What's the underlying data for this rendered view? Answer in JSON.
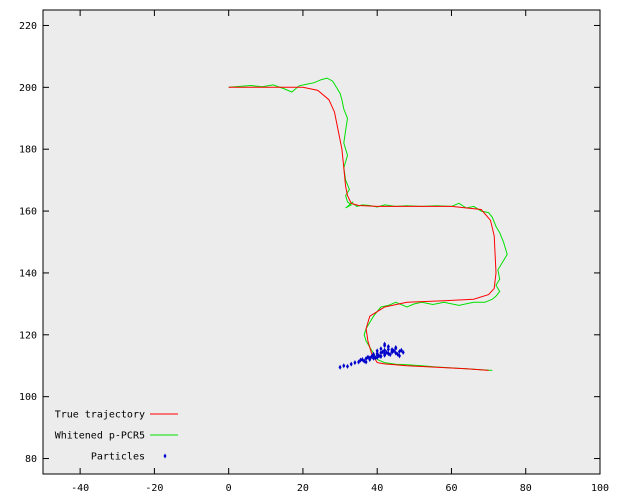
{
  "chart_data": {
    "type": "line",
    "title": "",
    "xlabel": "",
    "ylabel": "",
    "xlim": [
      -50,
      100
    ],
    "ylim": [
      75,
      225
    ],
    "xticks": [
      -40,
      -20,
      0,
      20,
      40,
      60,
      80,
      100
    ],
    "yticks": [
      80,
      100,
      120,
      140,
      160,
      180,
      200,
      220
    ],
    "grid": false,
    "legend_position": "bottom-left",
    "background": "#ececec",
    "series": [
      {
        "name": "True trajectory",
        "kind": "line",
        "color": "#ff0000",
        "x": [
          0,
          10,
          20,
          24,
          27,
          28.5,
          29.5,
          30.5,
          31,
          31.5,
          32,
          33,
          35,
          40,
          50,
          60,
          68,
          70.5,
          71.5,
          72,
          71.5,
          70,
          66,
          58,
          48,
          42,
          38,
          37,
          37.5,
          38.5,
          39.5,
          40,
          42,
          48,
          56,
          64,
          70
        ],
        "y": [
          200,
          200,
          200,
          199,
          196,
          192,
          186,
          180,
          174,
          168,
          165,
          162.5,
          161.8,
          161.5,
          161.5,
          161.5,
          160.5,
          157,
          152,
          140,
          135,
          133,
          131.5,
          131,
          130.5,
          129,
          126,
          122,
          118,
          114,
          112,
          111,
          110.6,
          110,
          109.5,
          109,
          108.5
        ]
      },
      {
        "name": "Whitened p-PCR5",
        "kind": "line",
        "color": "#00e000",
        "x": [
          0,
          3,
          6,
          9,
          12,
          15,
          17,
          19,
          21,
          23,
          25,
          26.5,
          28,
          29,
          30,
          30.5,
          31,
          32,
          31.5,
          31,
          32,
          31,
          31.5,
          32.5,
          31.5,
          32,
          33,
          31.5,
          32.5,
          33.5,
          33,
          34,
          34.5,
          36,
          38,
          40,
          42,
          45,
          48,
          52,
          56,
          60,
          62,
          64,
          66,
          68,
          70,
          71,
          72,
          73,
          74,
          75,
          74,
          72.5,
          73,
          72,
          73,
          72,
          71,
          69,
          66,
          62,
          58,
          55,
          52,
          50,
          48,
          45,
          43,
          41,
          40,
          39,
          38,
          37,
          36.5,
          37,
          38,
          39,
          40,
          42,
          45,
          48,
          52,
          56,
          60,
          64,
          68,
          71
        ],
        "y": [
          200,
          200.3,
          200.6,
          200.2,
          200.8,
          199.5,
          198.5,
          200.5,
          201,
          201.5,
          202.5,
          203,
          202,
          200,
          198,
          196,
          193,
          190,
          186,
          182,
          178,
          174,
          170,
          167,
          165,
          163,
          162,
          161,
          162,
          163,
          162.5,
          162,
          161.5,
          162,
          161.8,
          161.3,
          162,
          161.5,
          161.7,
          161.5,
          161.7,
          161.5,
          162.5,
          161,
          161.5,
          160,
          159.5,
          158,
          155,
          153,
          150,
          146,
          144,
          141,
          138,
          136,
          134,
          132.5,
          131.5,
          130.5,
          130.5,
          129.5,
          130.5,
          129.8,
          130.5,
          130,
          129,
          130.5,
          129.5,
          129,
          127.5,
          126,
          124,
          122,
          120,
          118,
          116,
          114,
          112,
          111,
          110.5,
          110.3,
          110,
          109.6,
          109.3,
          109,
          108.7,
          108.5
        ]
      },
      {
        "name": "Particles",
        "kind": "scatter",
        "color": "#0000cc",
        "x": [
          30,
          31,
          32,
          33,
          34,
          35,
          35.5,
          36,
          36.5,
          37,
          37.5,
          38,
          38.5,
          39,
          39.5,
          40,
          40,
          40.5,
          41,
          41,
          41.5,
          42,
          42,
          42.5,
          43,
          43,
          43.5,
          44,
          44,
          44.5,
          45,
          45,
          45.5,
          46,
          46.5,
          47,
          37,
          38,
          39,
          40,
          41,
          42,
          43,
          44,
          45,
          46,
          39,
          40,
          41,
          42,
          43,
          44,
          42,
          43
        ],
        "y": [
          109.5,
          110,
          109.8,
          110.5,
          111,
          111.2,
          111.8,
          112,
          111.5,
          112.3,
          112.8,
          112.5,
          113,
          113.3,
          112.6,
          113.5,
          114,
          113.2,
          114.2,
          113,
          114.5,
          115,
          113.8,
          114.3,
          115.3,
          114,
          113.6,
          115.2,
          114.4,
          114.8,
          115.6,
          114.1,
          113.7,
          114.6,
          115,
          114.3,
          111.2,
          112,
          112.4,
          112.7,
          113.1,
          113.4,
          113.9,
          114.7,
          115.9,
          113.2,
          113.7,
          114.8,
          115.5,
          116.5,
          116.1,
          115.1,
          117,
          116.2
        ]
      }
    ]
  }
}
